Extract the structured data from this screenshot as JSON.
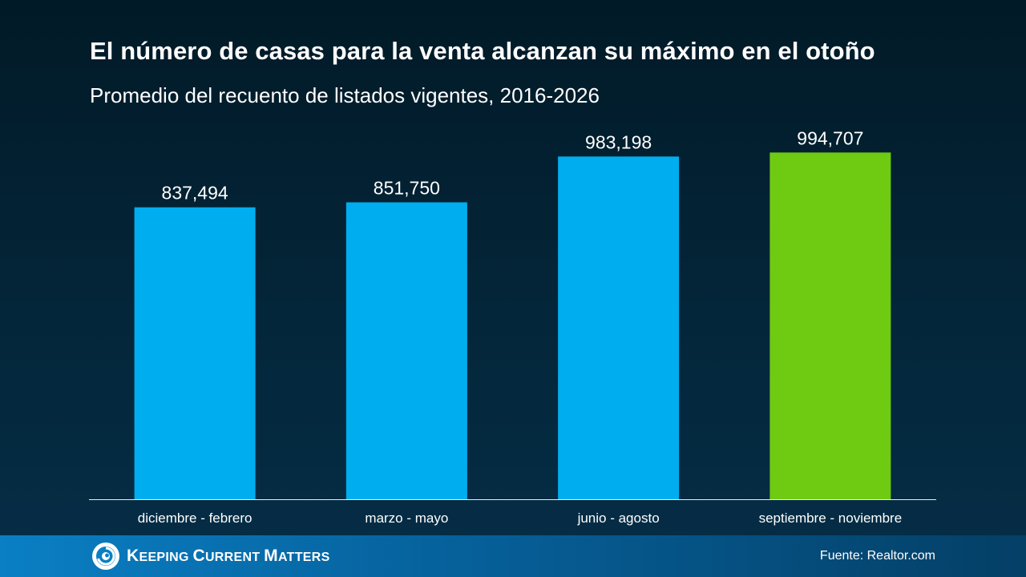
{
  "chart_data": {
    "type": "bar",
    "title": "El número de casas para la venta alcanzan su máximo en el otoño",
    "subtitle": "Promedio del recuento de listados vigentes, 2016-2026",
    "categories": [
      "diciembre - febrero",
      "marzo - mayo",
      "junio - agosto",
      "septiembre - noviembre"
    ],
    "values": [
      837494,
      851750,
      983198,
      994707
    ],
    "value_labels": [
      "837,494",
      "851,750",
      "983,198",
      "994,707"
    ],
    "colors": [
      "#00aeef",
      "#00aeef",
      "#00aeef",
      "#6fca12"
    ],
    "ylim": [
      0,
      1000000
    ],
    "grid": false,
    "legend": "none"
  },
  "footer": {
    "brand_part1_initial": "K",
    "brand_part1_rest": "EEPING",
    "brand_part2_initial": "C",
    "brand_part2_rest": "URRENT",
    "brand_part3_initial": "M",
    "brand_part3_rest": "ATTERS",
    "source": "Fuente: Realtor.com"
  },
  "colors": {
    "background": "#022033",
    "footer_bar": "#0a7fc4",
    "bar_default": "#00aeef",
    "bar_highlight": "#6fca12",
    "text": "#ffffff"
  }
}
